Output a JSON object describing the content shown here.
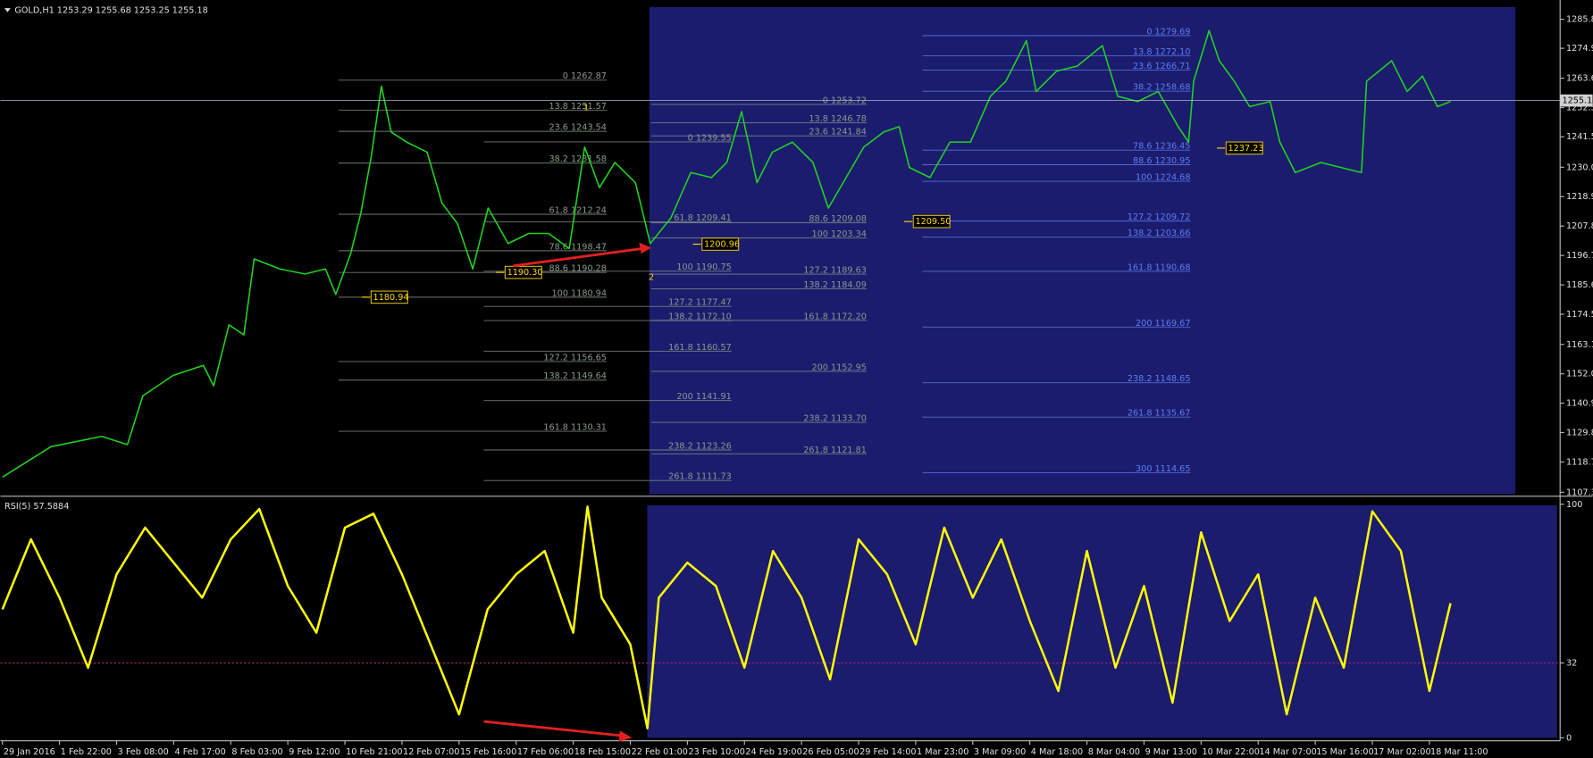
{
  "chart_data": [
    {
      "type": "line",
      "title": "GOLD,H1  1253.29 1255.68 1253.25 1255.18",
      "xlim": [
        0,
        27.29
      ],
      "xticks": [
        {
          "value": 0,
          "label": "29 Jan 2016"
        },
        {
          "value": 1,
          "label": "1 Feb 22:00"
        },
        {
          "value": 2,
          "label": "3 Feb 08:00"
        },
        {
          "value": 3,
          "label": "4 Feb 17:00"
        },
        {
          "value": 4,
          "label": "8 Feb 03:00"
        },
        {
          "value": 5,
          "label": "9 Feb 12:00"
        },
        {
          "value": 6,
          "label": "10 Feb 21:00"
        },
        {
          "value": 7,
          "label": "12 Feb 07:00"
        },
        {
          "value": 8,
          "label": "15 Feb 16:00"
        },
        {
          "value": 9,
          "label": "17 Feb 06:00"
        },
        {
          "value": 10,
          "label": "18 Feb 15:00"
        },
        {
          "value": 11,
          "label": "22 Feb 01:00"
        },
        {
          "value": 12,
          "label": "23 Feb 10:00"
        },
        {
          "value": 13,
          "label": "24 Feb 19:00"
        },
        {
          "value": 14,
          "label": "26 Feb 05:00"
        },
        {
          "value": 15,
          "label": "29 Feb 14:00"
        },
        {
          "value": 16,
          "label": "1 Mar 23:00"
        },
        {
          "value": 17,
          "label": "3 Mar 09:00"
        },
        {
          "value": 18,
          "label": "4 Mar 18:00"
        },
        {
          "value": 19,
          "label": "8 Mar 04:00"
        },
        {
          "value": 20,
          "label": "9 Mar 13:00"
        },
        {
          "value": 21,
          "label": "10 Mar 22:00"
        },
        {
          "value": 22,
          "label": "14 Mar 07:00"
        },
        {
          "value": 23,
          "label": "15 Mar 16:00"
        },
        {
          "value": 24,
          "label": "17 Mar 02:00"
        },
        {
          "value": 25,
          "label": "18 Mar 11:00"
        }
      ],
      "ylim": [
        1106.2,
        1291.6
      ],
      "yticks": [
        1285.85,
        {
          "value": 1274.9,
          "label": "1274.90"
        },
        {
          "value": 1263.6,
          "label": "1263.60"
        },
        {
          "value": 1252.5,
          "label": "1252.50"
        },
        {
          "value": 1241.5,
          "label": "1241.50"
        },
        {
          "value": 1230,
          "label": "1230.00"
        },
        {
          "value": 1218.9,
          "label": "1218.90"
        },
        {
          "value": 1207.8,
          "label": "1207.80"
        },
        {
          "value": 1196.7,
          "label": "1196.70"
        },
        {
          "value": 1185.6,
          "label": "1185.60"
        },
        {
          "value": 1174.5,
          "label": "1174.50"
        },
        {
          "value": 1163.1,
          "label": "1163.10"
        },
        {
          "value": 1152,
          "label": "1152.00"
        },
        1140.95,
        1129.85,
        1118.75,
        {
          "value": 1107.3,
          "label": "1107.30"
        }
      ],
      "last_price": 1255.18,
      "series": [
        {
          "name": "GOLD,H1",
          "color": "#1fd21f",
          "x": [
            0,
            0.85,
            1.74,
            2.19,
            2.46,
            2.99,
            3.52,
            3.7,
            3.97,
            4.23,
            4.41,
            4.86,
            5.3,
            5.66,
            5.84,
            6.1,
            6.28,
            6.46,
            6.64,
            6.81,
            7.08,
            7.44,
            7.7,
            7.97,
            8.24,
            8.51,
            8.86,
            9.22,
            9.57,
            9.93,
            10.2,
            10.46,
            10.73,
            11.09,
            11.35,
            11.71,
            12.06,
            12.42,
            12.69,
            12.95,
            13.22,
            13.49,
            13.84,
            14.2,
            14.47,
            14.73,
            15.09,
            15.44,
            15.71,
            15.89,
            16.25,
            16.6,
            16.96,
            17.31,
            17.58,
            17.94,
            18.11,
            18.47,
            18.83,
            19.27,
            19.54,
            19.89,
            20.25,
            20.6,
            20.78,
            20.87,
            21.14,
            21.32,
            21.58,
            21.85,
            22.21,
            22.38,
            22.65,
            23.1,
            23.45,
            23.81,
            23.9,
            24.34,
            24.61,
            24.88,
            25.14,
            25.37
          ],
          "values": [
            1113.0,
            1124.5,
            1128.4,
            1125.3,
            1143.7,
            1151.4,
            1155.2,
            1147.5,
            1170.5,
            1166.7,
            1195.4,
            1191.6,
            1189.7,
            1191.6,
            1182.0,
            1197.3,
            1212.7,
            1233.8,
            1260.6,
            1243.3,
            1239.5,
            1235.7,
            1216.5,
            1208.8,
            1191.6,
            1214.6,
            1201.2,
            1205.0,
            1205.0,
            1199.3,
            1237.6,
            1222.3,
            1231.8,
            1224.2,
            1201.2,
            1210.8,
            1228.0,
            1226.1,
            1231.8,
            1251.0,
            1224.2,
            1235.7,
            1239.5,
            1231.8,
            1214.6,
            1224.2,
            1237.6,
            1243.3,
            1245.3,
            1229.9,
            1226.1,
            1239.5,
            1239.5,
            1256.8,
            1262.5,
            1277.8,
            1258.6,
            1266.3,
            1268.2,
            1275.9,
            1256.8,
            1254.8,
            1258.6,
            1245.3,
            1239.5,
            1262.5,
            1281.6,
            1270.2,
            1262.5,
            1252.9,
            1254.8,
            1239.5,
            1228.0,
            1231.8,
            1229.9,
            1228.0,
            1262.5,
            1270.2,
            1258.6,
            1264.4,
            1252.9,
            1254.8
          ]
        }
      ],
      "fib_sets": [
        {
          "color": "#8a9a8a",
          "levels": [
            {
              "value": 1262.87,
              "label": "0 1262.87"
            },
            {
              "value": 1251.57,
              "label": "13.8 1251.57"
            },
            {
              "value": 1243.54,
              "label": "23.6 1243.54"
            },
            {
              "value": 1231.58,
              "label": "38.2 1231.58"
            },
            {
              "value": 1212.24,
              "label": "61.8 1212.24"
            },
            {
              "value": 1198.47,
              "label": "78.6 1198.47"
            },
            {
              "value": 1190.28,
              "label": "88.6 1190.28"
            },
            {
              "value": 1180.94,
              "label": "100 1180.94"
            },
            {
              "value": 1156.65,
              "label": "127.2 1156.65"
            },
            {
              "value": 1149.64,
              "label": "138.2 1149.64"
            },
            {
              "value": 1130.31,
              "label": "161.8 1130.31"
            }
          ]
        },
        {
          "color": "#8a9a8a",
          "levels": [
            {
              "value": 1239.55,
              "label": "0 1239.55"
            },
            {
              "value": 1209.41,
              "label": "61.8 1209.41"
            },
            {
              "value": 1190.75,
              "label": "100 1190.75"
            },
            {
              "value": 1177.47,
              "label": "127.2 1177.47"
            },
            {
              "value": 1172.1,
              "label": "138.2 1172.10"
            },
            {
              "value": 1160.57,
              "label": "161.8 1160.57"
            },
            {
              "value": 1141.91,
              "label": "200 1141.91"
            },
            {
              "value": 1123.26,
              "label": "238.2 1123.26"
            },
            {
              "value": 1111.73,
              "label": "261.8 1111.73"
            }
          ]
        },
        {
          "color": "#8a9a8a",
          "levels": [
            {
              "value": 1253.72,
              "label": "0 1253.72"
            },
            {
              "value": 1246.78,
              "label": "13.8 1246.78"
            },
            {
              "value": 1241.84,
              "label": "23.6 1241.84"
            },
            {
              "value": 1209.08,
              "label": "88.6 1209.08"
            },
            {
              "value": 1203.34,
              "label": "100 1203.34"
            },
            {
              "value": 1189.63,
              "label": "127.2 1189.63"
            },
            {
              "value": 1184.09,
              "label": "138.2 1184.09"
            },
            {
              "value": 1172.2,
              "label": "161.8 1172.20"
            },
            {
              "value": 1152.95,
              "label": "200 1152.95"
            },
            {
              "value": 1133.7,
              "label": "238.2 1133.70"
            },
            {
              "value": 1121.81,
              "label": "261.8 1121.81"
            }
          ]
        },
        {
          "color": "#5b7ff0",
          "levels": [
            {
              "value": 1279.69,
              "label": "0 1279.69"
            },
            {
              "value": 1272.1,
              "label": "13.8 1272.10"
            },
            {
              "value": 1266.71,
              "label": "23.6 1266.71"
            },
            {
              "value": 1258.68,
              "label": "38.2 1258.68"
            },
            {
              "value": 1236.45,
              "label": "78.6 1236.45"
            },
            {
              "value": 1230.95,
              "label": "88.6 1230.95"
            },
            {
              "value": 1224.68,
              "label": "100 1224.68"
            },
            {
              "value": 1209.72,
              "label": "127.2 1209.72"
            },
            {
              "value": 1203.66,
              "label": "138.2 1203.66"
            },
            {
              "value": 1190.68,
              "label": "161.8 1190.68"
            },
            {
              "value": 1169.67,
              "label": "200 1169.67"
            },
            {
              "value": 1148.65,
              "label": "238.2 1148.65"
            },
            {
              "value": 1135.67,
              "label": "261.8 1135.67"
            },
            {
              "value": 1114.65,
              "label": "300 1114.65"
            }
          ]
        }
      ],
      "price_labels": [
        1180.94,
        {
          "value": 1190.3,
          "label": "1190.30"
        },
        1200.96,
        {
          "value": 1209.5,
          "label": "1209.50"
        },
        1237.23
      ],
      "annotations": [
        "1",
        "2"
      ]
    },
    {
      "type": "line",
      "title": "RSI(5) 57.5884",
      "ylim": [
        0,
        100
      ],
      "yticks": [
        100,
        32,
        0
      ],
      "level": 32,
      "series": [
        {
          "name": "RSI(5)",
          "color": "#ffff00",
          "x": [
            0,
            0.5,
            1,
            1.5,
            2,
            2.5,
            3,
            3.5,
            4,
            4.5,
            5,
            5.5,
            6,
            6.5,
            7,
            7.5,
            8,
            8.5,
            9,
            9.5,
            10,
            10.25,
            10.5,
            11,
            11.3,
            11.5,
            12,
            12.5,
            13,
            13.5,
            14,
            14.5,
            15,
            15.5,
            16,
            16.5,
            17,
            17.5,
            18,
            18.5,
            19,
            19.5,
            20,
            20.5,
            21,
            21.5,
            22,
            22.5,
            23,
            23.5,
            24,
            24.5,
            25,
            25.37
          ],
          "values": [
            55,
            85,
            60,
            30,
            70,
            90,
            75,
            60,
            85,
            98,
            65,
            45,
            90,
            96,
            70,
            40,
            10,
            55,
            70,
            80,
            45,
            99,
            60,
            40,
            4,
            60,
            75,
            65,
            30,
            80,
            60,
            25,
            85,
            70,
            40,
            90,
            60,
            85,
            50,
            20,
            80,
            30,
            65,
            15,
            88,
            50,
            70,
            10,
            60,
            30,
            97,
            80,
            20,
            57.6
          ]
        }
      ]
    }
  ]
}
